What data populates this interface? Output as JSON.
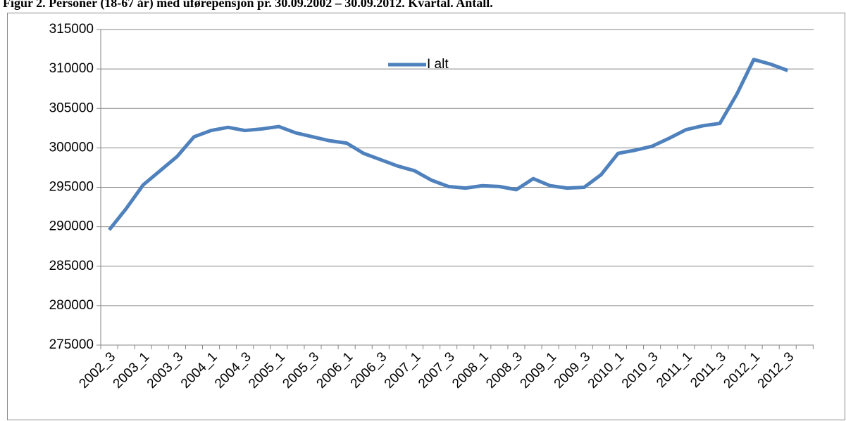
{
  "chart_data": {
    "type": "line",
    "title": "Figur 2. Personer (18-67 år) med uførepensjon pr. 30.09.2002 – 30.09.2012. Kvartal. Antall.",
    "categories": [
      "2002_3",
      null,
      "2003_1",
      null,
      "2003_3",
      null,
      "2004_1",
      null,
      "2004_3",
      null,
      "2005_1",
      null,
      "2005_3",
      null,
      "2006_1",
      null,
      "2006_3",
      null,
      "2007_1",
      null,
      "2007_3",
      null,
      "2008_1",
      null,
      "2008_3",
      null,
      "2009_1",
      null,
      "2009_3",
      null,
      "2010_1",
      null,
      "2010_3",
      null,
      "2011_1",
      null,
      "2011_3",
      null,
      "2012_1",
      null,
      "2012_3"
    ],
    "series": [
      {
        "name": "I alt",
        "color": "#4f81bd",
        "values": [
          289600,
          292300,
          295300,
          297100,
          298900,
          301400,
          302200,
          302600,
          302200,
          302400,
          302700,
          301900,
          301400,
          300900,
          300600,
          299300,
          298500,
          297700,
          297100,
          295900,
          295100,
          294900,
          295200,
          295100,
          294700,
          296100,
          295200,
          294900,
          295000,
          296600,
          299300,
          299700,
          300200,
          301200,
          302300,
          302800,
          303100,
          306800,
          311200,
          310600,
          309800
        ]
      }
    ],
    "ylim": [
      275000,
      315000
    ],
    "yticks": [
      275000,
      280000,
      285000,
      290000,
      295000,
      300000,
      305000,
      310000,
      315000
    ],
    "grid": true,
    "legend": "top"
  }
}
